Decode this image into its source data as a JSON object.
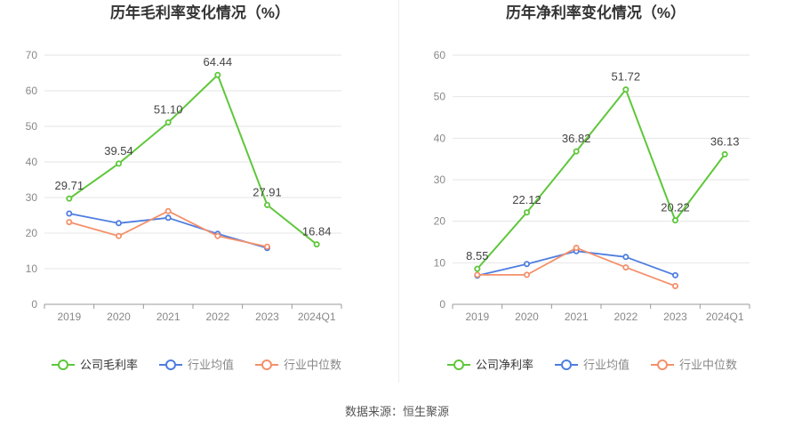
{
  "source_text": "数据来源：恒生聚源",
  "colors": {
    "company": "#5fc73b",
    "industry_avg": "#4e7de0",
    "industry_median": "#f4906a",
    "grid": "#e6e6e6",
    "axis": "#999999",
    "tick_text": "#888888"
  },
  "chart_data": [
    {
      "type": "line",
      "title": "历年毛利率变化情况（%）",
      "categories": [
        "2019",
        "2020",
        "2021",
        "2022",
        "2023",
        "2024Q1"
      ],
      "ylim": [
        0,
        70
      ],
      "yticks": [
        0,
        10,
        20,
        30,
        40,
        50,
        60,
        70
      ],
      "grid": true,
      "legend_position": "bottom",
      "series": [
        {
          "name": "公司毛利率",
          "color_key": "company",
          "values": [
            29.71,
            39.54,
            51.1,
            64.44,
            27.91,
            16.84
          ],
          "labels": [
            "29.71",
            "39.54",
            "51.10",
            "64.44",
            "27.91",
            "16.84"
          ]
        },
        {
          "name": "行业均值",
          "color_key": "industry_avg",
          "values": [
            25.5,
            22.8,
            24.3,
            19.8,
            15.8,
            null
          ]
        },
        {
          "name": "行业中位数",
          "color_key": "industry_median",
          "values": [
            23.1,
            19.2,
            26.2,
            19.2,
            16.2,
            null
          ]
        }
      ]
    },
    {
      "type": "line",
      "title": "历年净利率变化情况（%）",
      "categories": [
        "2019",
        "2020",
        "2021",
        "2022",
        "2023",
        "2024Q1"
      ],
      "ylim": [
        0,
        60
      ],
      "yticks": [
        0,
        10,
        20,
        30,
        40,
        50,
        60
      ],
      "grid": true,
      "legend_position": "bottom",
      "series": [
        {
          "name": "公司净利率",
          "color_key": "company",
          "values": [
            8.55,
            22.12,
            36.82,
            51.72,
            20.22,
            36.13
          ],
          "labels": [
            "8.55",
            "22.12",
            "36.82",
            "51.72",
            "20.22",
            "36.13"
          ]
        },
        {
          "name": "行业均值",
          "color_key": "industry_avg",
          "values": [
            6.9,
            9.7,
            12.8,
            11.4,
            7.0,
            null
          ]
        },
        {
          "name": "行业中位数",
          "color_key": "industry_median",
          "values": [
            7.1,
            7.1,
            13.6,
            8.9,
            4.4,
            null
          ]
        }
      ]
    }
  ]
}
